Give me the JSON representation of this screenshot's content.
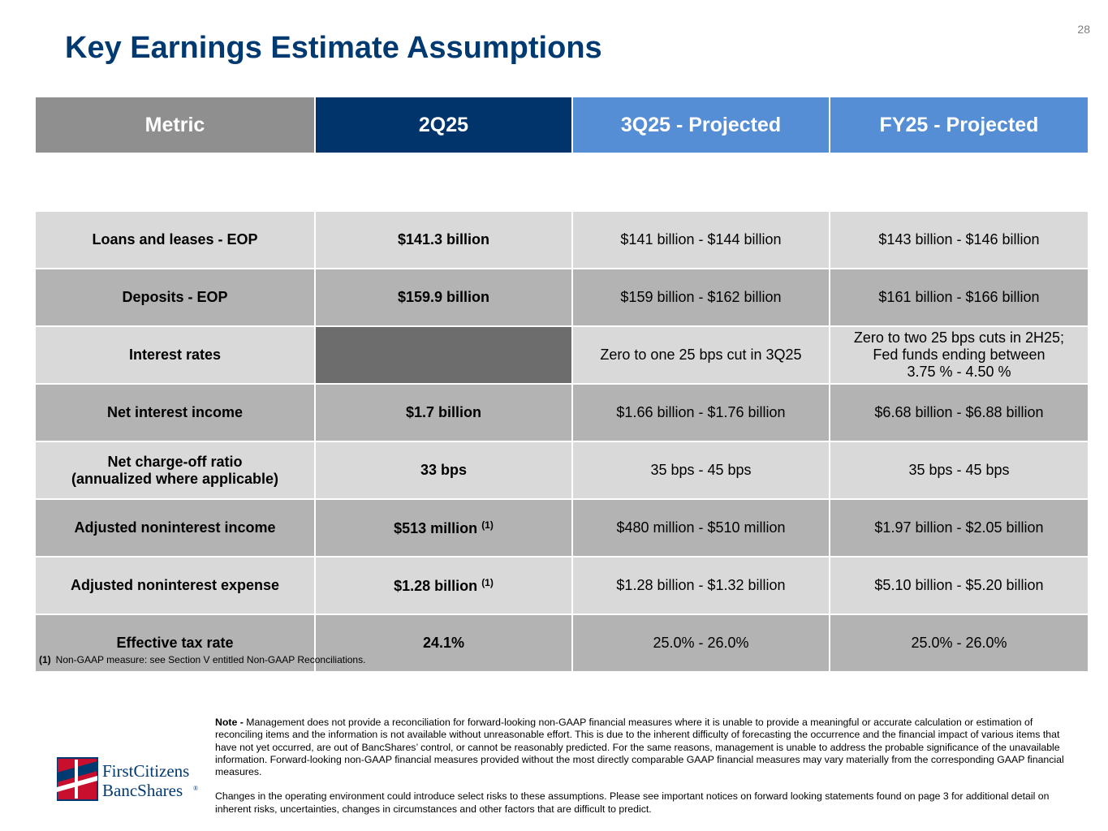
{
  "page_number": "28",
  "title": "Key Earnings Estimate Assumptions",
  "table": {
    "headers": [
      "Metric",
      "2Q25",
      "3Q25 - Projected",
      "FY25 - Projected"
    ],
    "rows": [
      {
        "metric": "Loans and leases - EOP",
        "q2": "$141.3 billion",
        "q2_sup": "",
        "q3": "$141 billion - $144 billion",
        "fy": "$143 billion - $146 billion"
      },
      {
        "metric": "Deposits - EOP",
        "q2": "$159.9 billion",
        "q2_sup": "",
        "q3": "$159 billion - $162 billion",
        "fy": "$161 billion - $166 billion"
      },
      {
        "metric": "Interest rates",
        "q2": "",
        "q2_sup": "",
        "q3": "Zero to one 25 bps cut in 3Q25",
        "fy_lines": [
          "Zero to two 25 bps cuts in 2H25;",
          "Fed funds ending between",
          "3.75 % - 4.50 %"
        ]
      },
      {
        "metric": "Net interest income",
        "q2": "$1.7 billion",
        "q2_sup": "",
        "q3": "$1.66 billion - $1.76 billion",
        "fy": "$6.68 billion - $6.88 billion"
      },
      {
        "metric_lines": [
          "Net charge-off ratio",
          "(annualized where applicable)"
        ],
        "q2": "33 bps",
        "q2_sup": "",
        "q3": "35 bps - 45 bps",
        "fy": "35 bps - 45 bps"
      },
      {
        "metric": "Adjusted noninterest income",
        "q2": "$513 million",
        "q2_sup": "(1)",
        "q3": "$480 million - $510 million",
        "fy": "$1.97 billion - $2.05 billion"
      },
      {
        "metric": "Adjusted noninterest expense",
        "q2": "$1.28 billion",
        "q2_sup": "(1)",
        "q3": "$1.28 billion - $1.32 billion",
        "fy": "$5.10 billion - $5.20 billion"
      },
      {
        "metric": "Effective tax rate",
        "q2": "24.1%",
        "q2_sup": "",
        "q3": "25.0% - 26.0%",
        "fy": "25.0% - 26.0%"
      }
    ]
  },
  "footnote": {
    "marker": "(1)",
    "text": "Non-GAAP measure: see Section V entitled Non-GAAP Reconciliations."
  },
  "note": {
    "label": "Note -",
    "text": "Management does not provide a reconciliation for forward-looking non-GAAP financial measures where it is unable to provide a meaningful or accurate calculation or estimation of reconciling items and the information is not available without unreasonable effort. This is due to the inherent difficulty of forecasting the occurrence and the financial impact of various items that have not yet occurred, are out of BancShares’ control, or cannot be reasonably predicted.  For the same reasons, management is unable to address the probable significance of the unavailable information.  Forward-looking non-GAAP financial measures provided without the most directly comparable GAAP financial measures may vary materially from the corresponding GAAP financial measures.",
    "paragraph2": "Changes in the operating environment could introduce select risks to these assumptions. Please see important notices on forward looking statements found on page 3 for additional detail on inherent risks, uncertainties, changes in circumstances and other factors that are difficult to predict."
  },
  "logo": {
    "line1": "FirstCitizens",
    "line2": "BancShares",
    "mark": "®"
  },
  "colors": {
    "title": "#003a70",
    "header_metric": "#8f8f8f",
    "header_2q25": "#00346b",
    "header_projected": "#558ed5",
    "logo_red": "#c8102e",
    "logo_blue": "#003a70"
  }
}
